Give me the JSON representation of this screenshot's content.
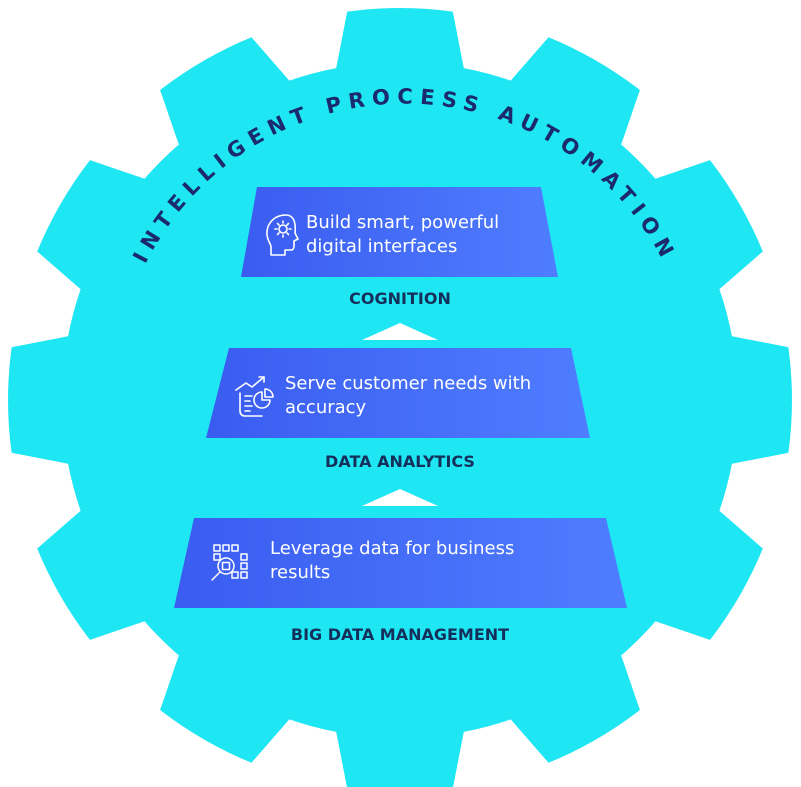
{
  "gear": {
    "title": "INTELLIGENT PROCESS AUTOMATION",
    "fill_color": "#1fe6f3",
    "title_color": "#1a2a6c"
  },
  "tiers": [
    {
      "id": "cognition",
      "line1": "Build smart, powerful",
      "line2": "digital interfaces",
      "label": "COGNITION",
      "icon": "head-gear-icon"
    },
    {
      "id": "data-analytics",
      "line1": "Serve customer needs with",
      "line2": "accuracy",
      "label": "DATA ANALYTICS",
      "icon": "analytics-chart-icon"
    },
    {
      "id": "big-data-management",
      "line1": "Leverage data for business",
      "line2": "results",
      "label": "BIG DATA MANAGEMENT",
      "icon": "data-grid-search-icon"
    }
  ],
  "colors": {
    "panel_left": "#3a5cf0",
    "panel_right": "#4f7dff",
    "panel_text": "#ffffff",
    "label_text": "#14305a",
    "arrow": "#ffffff"
  }
}
